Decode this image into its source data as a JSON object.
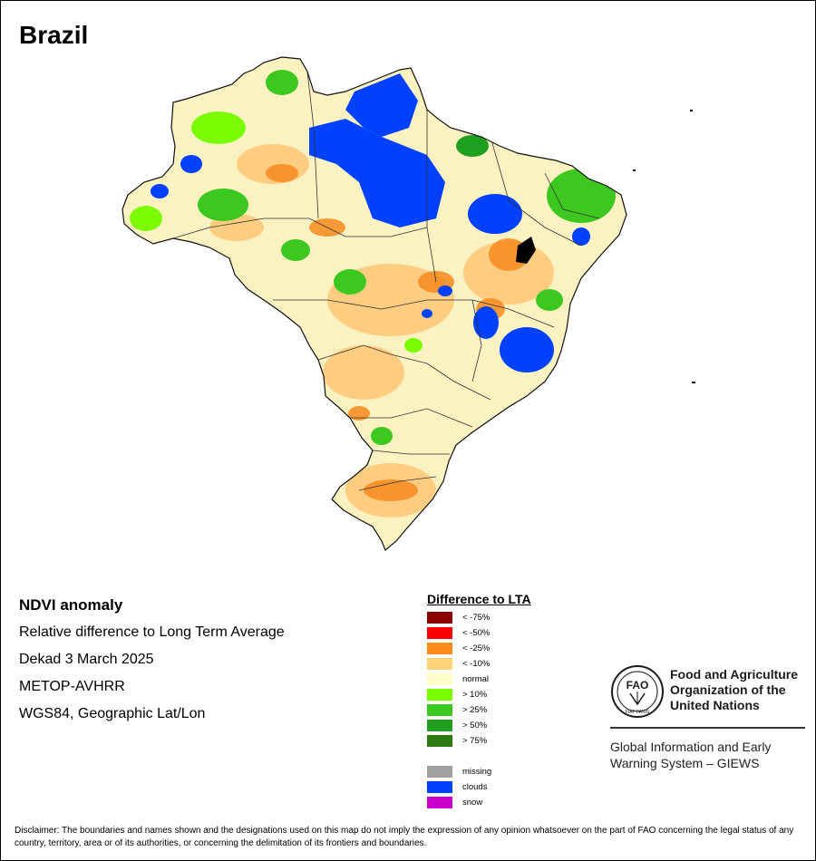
{
  "title": "Brazil",
  "info": {
    "heading": "NDVI anomaly",
    "line1": "Relative difference to Long Term Average",
    "line2": "Dekad 3 March 2025",
    "line3": "METOP-AVHRR",
    "line4": "WGS84, Geographic Lat/Lon"
  },
  "legend": {
    "title": "Difference to LTA",
    "classes": [
      {
        "label": "< -75%",
        "color": "#8b0000"
      },
      {
        "label": "< -50%",
        "color": "#ff0000"
      },
      {
        "label": "< -25%",
        "color": "#ff8c1a"
      },
      {
        "label": "< -10%",
        "color": "#ffd27a"
      },
      {
        "label": "normal",
        "color": "#ffffcc"
      },
      {
        "label": "> 10%",
        "color": "#7cfc00"
      },
      {
        "label": "> 25%",
        "color": "#3cc81e"
      },
      {
        "label": "> 50%",
        "color": "#1ea01e"
      },
      {
        "label": "> 75%",
        "color": "#2d7a10"
      }
    ],
    "extra": [
      {
        "label": "missing",
        "color": "#a0a0a0"
      },
      {
        "label": "clouds",
        "color": "#0040ff"
      },
      {
        "label": "snow",
        "color": "#cc00cc"
      }
    ]
  },
  "fao": {
    "logo_text": "FAO",
    "logo_motto": "FIAT PANIS",
    "name_line1": "Food and Agriculture",
    "name_line2": "Organization of the",
    "name_line3": "United Nations",
    "giews_line1": "Global Information and Early",
    "giews_line2": "Warning System – GIEWS"
  },
  "disclaimer": "Disclaimer: The boundaries and names shown and the designations used on this map do not imply the expression of any opinion whatsoever on the part of FAO concerning the legal status of any country, territory, area or of its authorities, or concerning the delimitation of its frontiers and boundaries."
}
